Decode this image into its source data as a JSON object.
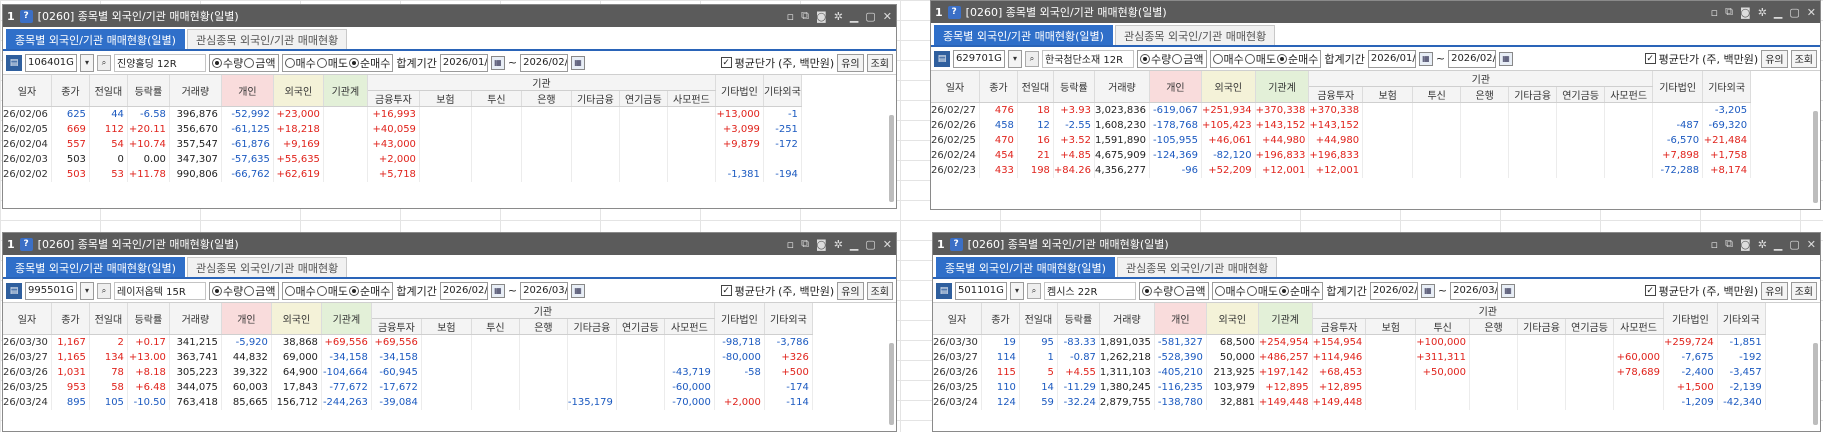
{
  "common": {
    "tabs": [
      "종목별 외국인/기관 매매현황(일별)",
      "관심종목 외국인/기관 매매현황"
    ],
    "radio1": [
      "수량",
      "금액"
    ],
    "radio2": [
      "매수",
      "매도",
      "순매수"
    ],
    "sum_label": "합계기간",
    "avg_label": "평균단가",
    "unit_label": "(주, 백만원)",
    "btn_yuui": "유의",
    "btn_search": "조회",
    "headers": [
      "일자",
      "종가",
      "전일대",
      "등락률",
      "거래량",
      "개인",
      "외국인",
      "기관계",
      "금융투자",
      "보험",
      "투신",
      "은행",
      "기타금융",
      "연기금등",
      "사모펀드",
      "기타법인",
      "기타외국"
    ],
    "group_header": "기관",
    "icons": [
      "window-icon",
      "copy-icon",
      "camera-icon",
      "gear-icon",
      "minimize-icon",
      "maximize-icon",
      "close-icon"
    ]
  },
  "windows": [
    {
      "num": "1",
      "title": "[0260] 종목별 외국인/기관 매매현황(일별)",
      "code": "106401G",
      "name": "진양홀딩 12R",
      "date_from": "2026/01/",
      "date_to": "2026/02/",
      "rows": [
        [
          "26/02/06",
          "625",
          "44",
          "-6.58",
          "396,876",
          "-52,992",
          "+23,000",
          "",
          "+16,993",
          "",
          "",
          "",
          "",
          "",
          "",
          "+13,000",
          "-1"
        ],
        [
          "26/02/05",
          "669",
          "112",
          "+20.11",
          "356,670",
          "-61,125",
          "+18,218",
          "",
          "+40,059",
          "",
          "",
          "",
          "",
          "",
          "",
          "+3,099",
          "-251"
        ],
        [
          "26/02/04",
          "557",
          "54",
          "+10.74",
          "357,547",
          "-61,876",
          "+9,169",
          "",
          "+43,000",
          "",
          "",
          "",
          "",
          "",
          "",
          "+9,879",
          "-172"
        ],
        [
          "26/02/03",
          "503",
          "0",
          "0.00",
          "347,307",
          "-57,635",
          "+55,635",
          "",
          "+2,000",
          "",
          "",
          "",
          "",
          "",
          "",
          "",
          ""
        ],
        [
          "26/02/02",
          "503",
          "53",
          "+11.78",
          "990,806",
          "-66,762",
          "+62,619",
          "",
          "+5,718",
          "",
          "",
          "",
          "",
          "",
          "",
          "-1,381",
          "-194"
        ]
      ]
    },
    {
      "num": "1",
      "title": "[0260] 종목별 외국인/기관 매매현황(일별)",
      "code": "629701G",
      "name": "한국첨단소재 12R",
      "date_from": "2026/01/",
      "date_to": "2026/02/",
      "rows": [
        [
          "26/02/27",
          "476",
          "18",
          "+3.93",
          "3,023,836",
          "-619,067",
          "+251,934",
          "+370,338",
          "+370,338",
          "",
          "",
          "",
          "",
          "",
          "",
          "",
          "-3,205"
        ],
        [
          "26/02/26",
          "458",
          "12",
          "-2.55",
          "1,608,230",
          "-178,768",
          "+105,423",
          "+143,152",
          "+143,152",
          "",
          "",
          "",
          "",
          "",
          "",
          "-487",
          "-69,320"
        ],
        [
          "26/02/25",
          "470",
          "16",
          "+3.52",
          "1,591,890",
          "-105,955",
          "+46,061",
          "+44,980",
          "+44,980",
          "",
          "",
          "",
          "",
          "",
          "",
          "-6,570",
          "+21,484"
        ],
        [
          "26/02/24",
          "454",
          "21",
          "+4.85",
          "4,675,909",
          "-124,369",
          "-82,120",
          "+196,833",
          "+196,833",
          "",
          "",
          "",
          "",
          "",
          "",
          "+7,898",
          "+1,758"
        ],
        [
          "26/02/23",
          "433",
          "198",
          "+84.26",
          "4,356,277",
          "-96",
          "+52,209",
          "+12,001",
          "+12,001",
          "",
          "",
          "",
          "",
          "",
          "",
          "-72,288",
          "+8,174"
        ]
      ]
    },
    {
      "num": "1",
      "title": "[0260] 종목별 외국인/기관 매매현황(일별)",
      "code": "995501G",
      "name": "레이저옵텍 15R",
      "date_from": "2026/02/",
      "date_to": "2026/03/",
      "rows": [
        [
          "26/03/30",
          "1,167",
          "2",
          "+0.17",
          "341,215",
          "-5,920",
          "38,868",
          "+69,556",
          "+69,556",
          "",
          "",
          "",
          "",
          "",
          "",
          "-98,718",
          "-3,786"
        ],
        [
          "26/03/27",
          "1,165",
          "134",
          "+13.00",
          "363,741",
          "44,832",
          "69,000",
          "-34,158",
          "-34,158",
          "",
          "",
          "",
          "",
          "",
          "",
          "-80,000",
          "+326"
        ],
        [
          "26/03/26",
          "1,031",
          "78",
          "+8.18",
          "305,223",
          "39,322",
          "64,900",
          "-104,664",
          "-60,945",
          "",
          "",
          "",
          "",
          "",
          "-43,719",
          "-58",
          "+500"
        ],
        [
          "26/03/25",
          "953",
          "58",
          "+6.48",
          "344,075",
          "60,003",
          "17,843",
          "-77,672",
          "-17,672",
          "",
          "",
          "",
          "",
          "",
          "-60,000",
          "",
          "-174"
        ],
        [
          "26/03/24",
          "895",
          "105",
          "-10.50",
          "763,418",
          "85,665",
          "156,712",
          "-244,263",
          "-39,084",
          "",
          "",
          "",
          "-135,179",
          "",
          "-70,000",
          "+2,000",
          "-114"
        ]
      ]
    },
    {
      "num": "1",
      "title": "[0260] 종목별 외국인/기관 매매현황(일별)",
      "code": "501101G",
      "name": "켐시스 22R",
      "date_from": "2026/02/",
      "date_to": "2026/03/",
      "rows": [
        [
          "26/03/30",
          "19",
          "95",
          "-83.33",
          "1,891,035",
          "-581,327",
          "68,500",
          "+254,954",
          "+154,954",
          "",
          "+100,000",
          "",
          "",
          "",
          "",
          "+259,724",
          "-1,851"
        ],
        [
          "26/03/27",
          "114",
          "1",
          "-0.87",
          "1,262,218",
          "-528,390",
          "50,000",
          "+486,257",
          "+114,946",
          "",
          "+311,311",
          "",
          "",
          "",
          "+60,000",
          "-7,675",
          "-192"
        ],
        [
          "26/03/26",
          "115",
          "5",
          "+4.55",
          "1,311,103",
          "-405,210",
          "213,925",
          "+197,142",
          "+68,453",
          "",
          "+50,000",
          "",
          "",
          "",
          "+78,689",
          "-2,400",
          "-3,457"
        ],
        [
          "26/03/25",
          "110",
          "14",
          "-11.29",
          "1,380,245",
          "-116,235",
          "103,979",
          "+12,895",
          "+12,895",
          "",
          "",
          "",
          "",
          "",
          "",
          "+1,500",
          "-2,139"
        ],
        [
          "26/03/24",
          "124",
          "59",
          "-32.24",
          "2,879,755",
          "-138,780",
          "32,881",
          "+149,448",
          "+149,448",
          "",
          "",
          "",
          "",
          "",
          "",
          "-1,209",
          "-42,340"
        ]
      ]
    }
  ]
}
